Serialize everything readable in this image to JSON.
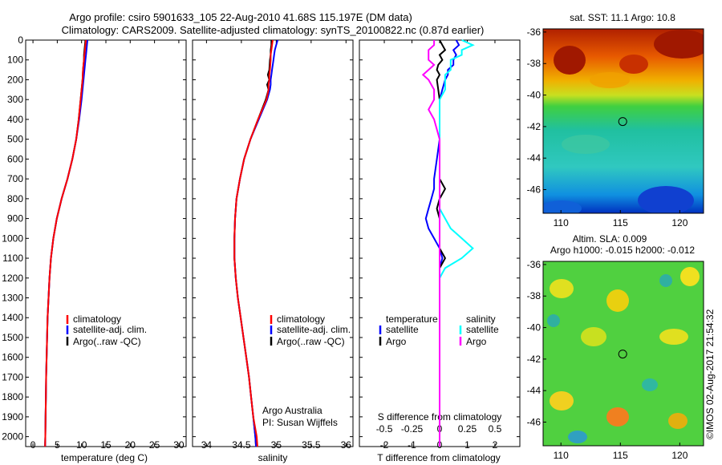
{
  "figure": {
    "title_line1": "Argo profile: csiro 5901633_105 22-Aug-2010 41.68S 115.197E (DM data)",
    "title_line2": "Climatology: CARS2009. Satellite-adjusted climatology: synTS_20100822.nc (0.87d earlier)",
    "credit_line1": "Argo Australia",
    "credit_line2": "PI: Susan Wijffels",
    "timestamp": "©IMOS 02-Aug-2017 21:54:32"
  },
  "colors": {
    "climatology": "#ff0000",
    "satellite": "#0000ff",
    "argo": "#000000",
    "salinity_satellite": "#00ffff",
    "salinity_argo": "#ff00ff"
  },
  "chart_data": [
    {
      "type": "line",
      "name": "temperature-profile",
      "xlabel": "temperature (deg C)",
      "ylabel": "",
      "xlim": [
        -1.5,
        31.5
      ],
      "ylim": [
        2050,
        0
      ],
      "xticks": [
        0,
        5,
        10,
        15,
        20,
        25,
        30
      ],
      "yticks": [
        0,
        100,
        200,
        300,
        400,
        500,
        600,
        700,
        800,
        900,
        1000,
        1100,
        1200,
        1300,
        1400,
        1500,
        1600,
        1700,
        1800,
        1900,
        2000
      ],
      "legend": [
        "climatology",
        "satellite-adj. clim.",
        "Argo(..raw -QC)"
      ],
      "legend_position": "bottom-right",
      "depth": [
        0,
        25,
        50,
        75,
        100,
        125,
        150,
        200,
        250,
        300,
        400,
        500,
        600,
        700,
        800,
        900,
        1000,
        1100,
        1200,
        1300,
        1400,
        1500,
        1600,
        1700,
        1800,
        1900,
        2000,
        2050
      ],
      "series": [
        {
          "name": "Argo(..raw -QC)",
          "values": [
            10.8,
            10.7,
            10.6,
            10.5,
            10.5,
            10.4,
            10.3,
            10.2,
            10.0,
            9.8,
            9.4,
            8.9,
            8.1,
            7.1,
            5.9,
            4.9,
            4.2,
            3.7,
            3.4,
            3.2,
            3.0,
            2.9,
            2.8,
            2.7,
            2.65,
            2.6,
            2.55,
            2.5
          ]
        },
        {
          "name": "satellite-adj. clim.",
          "values": [
            11.2,
            11.1,
            11.0,
            10.9,
            10.8,
            10.7,
            10.6,
            10.4,
            10.2,
            10.0,
            9.5,
            8.9,
            8.1,
            7.1,
            5.9,
            4.9,
            4.2,
            3.7,
            3.4,
            3.2,
            3.0,
            2.9,
            2.8,
            2.7,
            2.65,
            2.6,
            2.55,
            2.5
          ]
        },
        {
          "name": "climatology",
          "values": [
            10.9,
            10.8,
            10.7,
            10.6,
            10.5,
            10.4,
            10.3,
            10.2,
            10.0,
            9.8,
            9.4,
            8.9,
            8.1,
            7.1,
            5.9,
            4.9,
            4.2,
            3.7,
            3.4,
            3.2,
            3.0,
            2.9,
            2.8,
            2.7,
            2.65,
            2.6,
            2.55,
            2.5
          ]
        }
      ]
    },
    {
      "type": "line",
      "name": "salinity-profile",
      "xlabel": "salinity",
      "xlim": [
        33.8,
        36.1
      ],
      "ylim": [
        2050,
        0
      ],
      "xticks": [
        34,
        34.5,
        35,
        35.5,
        36
      ],
      "legend": [
        "climatology",
        "satellite-adj. clim.",
        "Argo(..raw -QC)"
      ],
      "legend_position": "bottom-right",
      "depth": [
        0,
        25,
        50,
        75,
        100,
        150,
        175,
        200,
        225,
        250,
        300,
        400,
        500,
        600,
        700,
        800,
        900,
        1000,
        1100,
        1200,
        1300,
        1400,
        1500,
        1600,
        1700,
        1800,
        1900,
        2000,
        2050
      ],
      "series": [
        {
          "name": "Argo(..raw -QC)",
          "values": [
            34.93,
            34.93,
            34.92,
            34.92,
            34.91,
            34.9,
            34.88,
            34.9,
            34.87,
            34.89,
            34.85,
            34.74,
            34.63,
            34.54,
            34.48,
            34.43,
            34.41,
            34.4,
            34.4,
            34.42,
            34.45,
            34.49,
            34.53,
            34.57,
            34.61,
            34.64,
            34.67,
            34.7,
            34.71
          ]
        },
        {
          "name": "satellite-adj. clim.",
          "values": [
            35.02,
            35.0,
            34.98,
            34.97,
            34.96,
            34.94,
            34.93,
            34.92,
            34.92,
            34.91,
            34.87,
            34.75,
            34.63,
            34.54,
            34.48,
            34.43,
            34.41,
            34.4,
            34.4,
            34.42,
            34.45,
            34.49,
            34.53,
            34.57,
            34.61,
            34.64,
            34.67,
            34.7,
            34.71
          ]
        },
        {
          "name": "climatology",
          "values": [
            34.95,
            34.94,
            34.93,
            34.92,
            34.92,
            34.91,
            34.9,
            34.9,
            34.89,
            34.89,
            34.86,
            34.74,
            34.63,
            34.54,
            34.48,
            34.43,
            34.41,
            34.4,
            34.4,
            34.42,
            34.45,
            34.49,
            34.53,
            34.57,
            34.61,
            34.64,
            34.67,
            34.72,
            34.73
          ]
        }
      ]
    },
    {
      "type": "line",
      "name": "difference-profile",
      "xlabel": "T difference from climatology",
      "top_label": "S difference from climatology",
      "xlim": [
        -2.9,
        2.9
      ],
      "ylim": [
        2050,
        0
      ],
      "xticks": [
        -2,
        -1,
        0,
        1,
        2
      ],
      "s_ticks": [
        -0.5,
        -0.25,
        0,
        0.25,
        0.5
      ],
      "legend_temperature_title": "temperature",
      "legend_salinity_title": "salinity",
      "legend_temperature": [
        "satellite",
        "Argo"
      ],
      "legend_salinity": [
        "satellite",
        "Argo"
      ],
      "legend_position": "bottom",
      "depth": [
        0,
        25,
        50,
        75,
        100,
        125,
        150,
        175,
        200,
        250,
        300,
        350,
        400,
        500,
        600,
        700,
        750,
        800,
        850,
        900,
        950,
        1000,
        1050,
        1100,
        1150,
        1200,
        1300,
        1500,
        1700,
        2000,
        2050
      ],
      "series": [
        {
          "name": "temperature satellite",
          "values": [
            0.6,
            0.7,
            0.5,
            0.6,
            0.5,
            0.5,
            0.3,
            0.3,
            0.2,
            0.1,
            0.0,
            0.0,
            0.0,
            0.0,
            -0.1,
            -0.2,
            -0.2,
            -0.3,
            -0.4,
            -0.5,
            -0.4,
            -0.2,
            0.0,
            0.1,
            0.0,
            0.0,
            0.0,
            0.0,
            0.0,
            0.0,
            0.0
          ]
        },
        {
          "name": "temperature Argo",
          "values": [
            0.0,
            0.1,
            0.2,
            0.0,
            0.1,
            -0.05,
            -0.1,
            0.0,
            -0.1,
            -0.05,
            0.0,
            0.0,
            0.0,
            0.0,
            0.0,
            0.0,
            0.2,
            0.0,
            -0.1,
            0.0,
            0.0,
            0.0,
            0.0,
            0.2,
            0.0,
            0.0,
            0.0,
            0.0,
            0.0,
            0.0,
            0.0
          ]
        },
        {
          "name": "salinity satellite",
          "values": [
            0.2,
            0.3,
            0.2,
            0.2,
            0.1,
            0.1,
            0.1,
            0.05,
            0.05,
            0.05,
            0.0,
            0.0,
            0.0,
            0.0,
            0.0,
            0.0,
            0.0,
            0.0,
            0.0,
            0.05,
            0.1,
            0.2,
            0.3,
            0.2,
            0.05,
            0.0,
            0.0,
            0.0,
            0.0,
            0.0,
            0.0
          ]
        },
        {
          "name": "salinity Argo",
          "values": [
            -0.05,
            -0.05,
            -0.1,
            -0.1,
            -0.1,
            -0.05,
            -0.1,
            -0.15,
            -0.1,
            -0.05,
            -0.05,
            -0.1,
            -0.05,
            0.0,
            0.0,
            0.0,
            0.0,
            0.0,
            0.0,
            0.0,
            0.0,
            0.0,
            0.0,
            0.0,
            0.0,
            0.0,
            0.0,
            0.0,
            0.0,
            0.0,
            0.0
          ]
        }
      ]
    },
    {
      "type": "heatmap",
      "name": "sst-map",
      "title": "sat. SST: 11.1  Argo: 10.8",
      "xlim": [
        108.5,
        122
      ],
      "ylim": [
        -47.5,
        -35.8
      ],
      "xticks": [
        110,
        115,
        120
      ],
      "yticks": [
        -36,
        -38,
        -40,
        -42,
        -44,
        -46
      ],
      "marker": {
        "lon": 115.197,
        "lat": -41.68
      }
    },
    {
      "type": "heatmap",
      "name": "sla-map",
      "title": "Altim. SLA: 0.009",
      "subtitle": "Argo h1000: -0.015 h2000: -0.012",
      "xlim": [
        108.5,
        122
      ],
      "ylim": [
        -47.5,
        -35.8
      ],
      "xticks": [
        110,
        115,
        120
      ],
      "yticks": [
        -36,
        -38,
        -40,
        -42,
        -44,
        -46
      ],
      "marker": {
        "lon": 115.197,
        "lat": -41.68
      }
    }
  ]
}
